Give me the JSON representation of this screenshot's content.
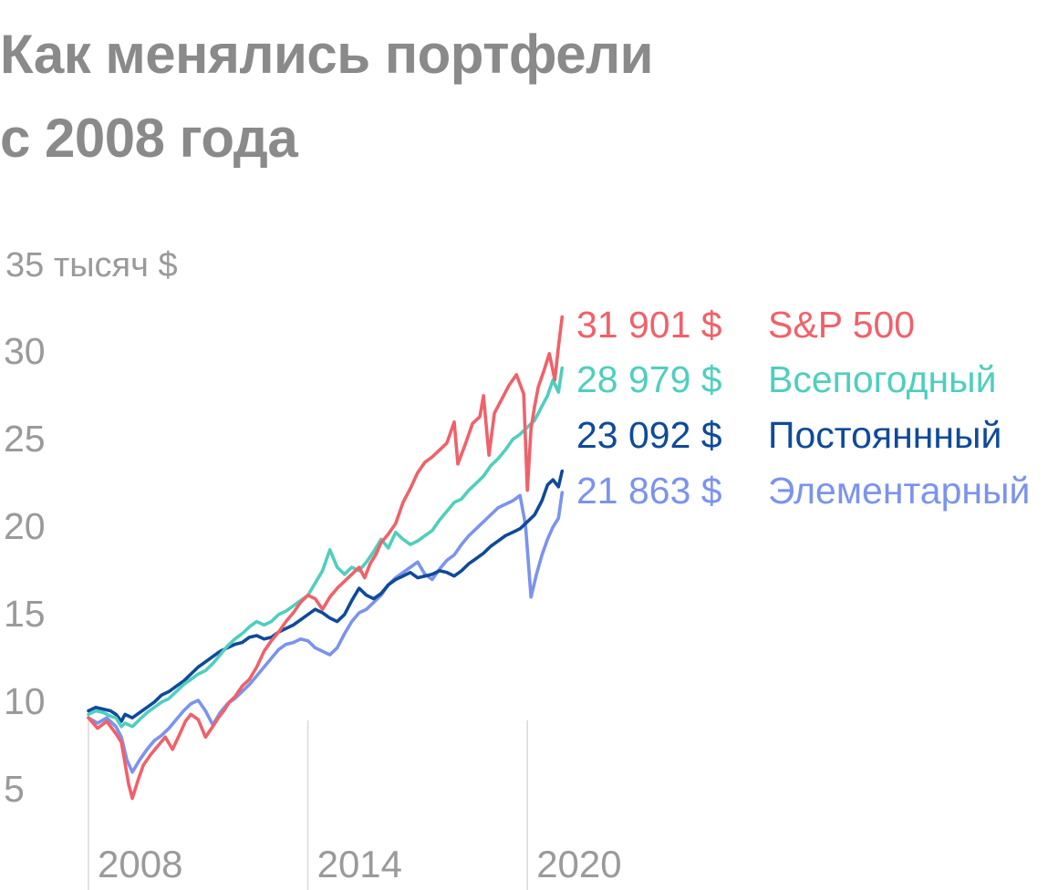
{
  "title": {
    "line1": "Как менялись портфели",
    "line2": "с 2008 года"
  },
  "chart_data": {
    "type": "line",
    "y_unit_label": "35 тысяч $",
    "y_ticks": [
      5,
      10,
      15,
      20,
      25,
      30
    ],
    "ylim": [
      0,
      35
    ],
    "x_ticks": [
      "2008",
      "2014",
      "2020"
    ],
    "xlim": [
      2008.0,
      2021.0
    ],
    "grid": "vertical lines at 2008, 2014 and 2020",
    "colors": {
      "sp500": "#f0616a",
      "all_weather": "#4fcfbd",
      "permanent": "#0e4a9b",
      "elementary": "#7b93ee",
      "grid": "#d9d9d9",
      "axis_text": "#9a9a9a"
    },
    "series": [
      {
        "name": "S&P 500",
        "key": "sp500",
        "final_label": "31 901 $",
        "x": [
          2008.0,
          2008.25,
          2008.5,
          2008.75,
          2008.9,
          2009.0,
          2009.1,
          2009.2,
          2009.35,
          2009.5,
          2009.7,
          2009.9,
          2010.1,
          2010.3,
          2010.5,
          2010.65,
          2010.8,
          2011.0,
          2011.2,
          2011.4,
          2011.55,
          2011.7,
          2011.85,
          2012.0,
          2012.2,
          2012.4,
          2012.6,
          2012.8,
          2013.0,
          2013.2,
          2013.4,
          2013.6,
          2013.8,
          2014.0,
          2014.2,
          2014.4,
          2014.6,
          2014.8,
          2015.0,
          2015.2,
          2015.4,
          2015.55,
          2015.7,
          2015.85,
          2016.0,
          2016.2,
          2016.4,
          2016.6,
          2016.8,
          2017.0,
          2017.2,
          2017.4,
          2017.6,
          2017.8,
          2018.0,
          2018.1,
          2018.3,
          2018.5,
          2018.7,
          2018.8,
          2018.95,
          2019.1,
          2019.3,
          2019.5,
          2019.7,
          2019.9,
          2020.0,
          2020.1,
          2020.2,
          2020.3,
          2020.45,
          2020.6,
          2020.75,
          2020.85,
          2020.95
        ],
        "values": [
          9.0,
          8.4,
          8.8,
          8.1,
          7.6,
          6.4,
          5.2,
          4.4,
          5.4,
          6.3,
          6.9,
          7.4,
          7.9,
          7.2,
          8.1,
          8.8,
          9.2,
          8.9,
          7.9,
          8.5,
          9.0,
          9.4,
          9.9,
          10.2,
          10.8,
          11.2,
          11.9,
          12.8,
          13.4,
          13.9,
          14.5,
          15.0,
          15.6,
          16.0,
          15.8,
          15.2,
          15.9,
          16.4,
          16.8,
          17.2,
          17.6,
          17.0,
          17.8,
          18.3,
          19.0,
          19.5,
          20.1,
          21.3,
          22.1,
          23.0,
          23.6,
          23.9,
          24.3,
          24.7,
          25.9,
          23.5,
          24.6,
          25.8,
          26.2,
          27.4,
          24.0,
          26.4,
          27.2,
          28.0,
          28.6,
          27.5,
          22.0,
          25.5,
          26.8,
          27.9,
          28.8,
          29.8,
          28.3,
          30.2,
          31.901
        ]
      },
      {
        "name": "Всепогодный",
        "key": "all_weather",
        "final_label": "28 979 $",
        "x": [
          2008.0,
          2008.2,
          2008.4,
          2008.6,
          2008.75,
          2008.9,
          2009.0,
          2009.2,
          2009.4,
          2009.6,
          2009.8,
          2010.0,
          2010.2,
          2010.4,
          2010.6,
          2010.8,
          2011.0,
          2011.2,
          2011.4,
          2011.6,
          2011.8,
          2012.0,
          2012.2,
          2012.4,
          2012.6,
          2012.8,
          2013.0,
          2013.2,
          2013.4,
          2013.6,
          2013.8,
          2014.0,
          2014.2,
          2014.4,
          2014.6,
          2014.8,
          2015.0,
          2015.2,
          2015.4,
          2015.6,
          2015.8,
          2016.0,
          2016.2,
          2016.4,
          2016.6,
          2016.8,
          2017.0,
          2017.2,
          2017.4,
          2017.6,
          2017.8,
          2018.0,
          2018.2,
          2018.4,
          2018.6,
          2018.8,
          2019.0,
          2019.2,
          2019.4,
          2019.6,
          2019.8,
          2020.0,
          2020.2,
          2020.4,
          2020.55,
          2020.7,
          2020.85,
          2020.95
        ],
        "values": [
          9.2,
          9.4,
          9.3,
          9.1,
          9.0,
          8.5,
          8.7,
          8.5,
          8.9,
          9.3,
          9.6,
          9.9,
          10.1,
          10.5,
          10.9,
          11.2,
          11.5,
          11.7,
          12.1,
          12.6,
          13.1,
          13.5,
          13.8,
          14.2,
          14.5,
          14.3,
          14.5,
          14.9,
          15.1,
          15.4,
          15.7,
          16.0,
          16.7,
          17.4,
          18.6,
          17.6,
          17.2,
          17.6,
          17.4,
          17.9,
          18.5,
          19.2,
          18.7,
          19.6,
          19.2,
          18.9,
          19.1,
          19.4,
          19.7,
          20.3,
          20.8,
          21.3,
          21.5,
          22.0,
          22.4,
          22.8,
          23.4,
          23.8,
          24.3,
          24.9,
          25.2,
          25.6,
          26.0,
          26.8,
          27.4,
          28.3,
          27.6,
          28.979
        ]
      },
      {
        "name": "Постояннный",
        "key": "permanent",
        "final_label": "23 092 $",
        "x": [
          2008.0,
          2008.2,
          2008.4,
          2008.6,
          2008.75,
          2008.9,
          2009.0,
          2009.2,
          2009.4,
          2009.6,
          2009.8,
          2010.0,
          2010.2,
          2010.4,
          2010.6,
          2010.8,
          2011.0,
          2011.2,
          2011.4,
          2011.6,
          2011.8,
          2012.0,
          2012.2,
          2012.4,
          2012.6,
          2012.8,
          2013.0,
          2013.2,
          2013.4,
          2013.6,
          2013.8,
          2014.0,
          2014.2,
          2014.4,
          2014.6,
          2014.8,
          2015.0,
          2015.2,
          2015.4,
          2015.6,
          2015.8,
          2016.0,
          2016.2,
          2016.4,
          2016.6,
          2016.8,
          2017.0,
          2017.2,
          2017.4,
          2017.6,
          2017.8,
          2018.0,
          2018.2,
          2018.4,
          2018.6,
          2018.8,
          2019.0,
          2019.2,
          2019.4,
          2019.6,
          2019.8,
          2020.0,
          2020.2,
          2020.4,
          2020.55,
          2020.7,
          2020.85,
          2020.95
        ],
        "values": [
          9.4,
          9.6,
          9.5,
          9.4,
          9.2,
          8.8,
          9.2,
          9.0,
          9.3,
          9.6,
          9.9,
          10.3,
          10.5,
          10.8,
          11.1,
          11.5,
          11.9,
          12.2,
          12.5,
          12.8,
          13.0,
          13.2,
          13.3,
          13.6,
          13.7,
          13.5,
          13.6,
          13.9,
          14.1,
          14.3,
          14.6,
          14.9,
          15.2,
          15.0,
          14.7,
          14.5,
          14.9,
          15.7,
          16.4,
          16.0,
          15.8,
          16.1,
          16.6,
          16.9,
          17.1,
          17.3,
          17.0,
          17.1,
          17.2,
          17.4,
          17.3,
          17.1,
          17.4,
          17.8,
          18.1,
          18.4,
          18.8,
          19.1,
          19.4,
          19.6,
          19.8,
          20.2,
          20.6,
          21.4,
          22.3,
          22.6,
          22.2,
          23.092
        ]
      },
      {
        "name": "Элементарный",
        "key": "elementary",
        "final_label": "21 863 $",
        "x": [
          2008.0,
          2008.25,
          2008.5,
          2008.75,
          2008.9,
          2009.05,
          2009.2,
          2009.4,
          2009.6,
          2009.8,
          2010.0,
          2010.2,
          2010.4,
          2010.6,
          2010.8,
          2011.0,
          2011.2,
          2011.4,
          2011.6,
          2011.8,
          2012.0,
          2012.2,
          2012.4,
          2012.6,
          2012.8,
          2013.0,
          2013.2,
          2013.4,
          2013.6,
          2013.8,
          2014.0,
          2014.2,
          2014.4,
          2014.6,
          2014.8,
          2015.0,
          2015.2,
          2015.4,
          2015.6,
          2015.8,
          2016.0,
          2016.2,
          2016.4,
          2016.6,
          2016.8,
          2017.0,
          2017.2,
          2017.4,
          2017.6,
          2017.8,
          2018.0,
          2018.2,
          2018.4,
          2018.6,
          2018.8,
          2019.0,
          2019.2,
          2019.4,
          2019.6,
          2019.8,
          2019.95,
          2020.1,
          2020.25,
          2020.4,
          2020.55,
          2020.7,
          2020.85,
          2020.95
        ],
        "values": [
          9.0,
          8.7,
          9.0,
          8.5,
          7.9,
          6.6,
          5.9,
          6.6,
          7.2,
          7.7,
          8.0,
          8.4,
          8.9,
          9.4,
          9.8,
          10.0,
          9.4,
          8.6,
          9.3,
          9.8,
          10.1,
          10.5,
          10.9,
          11.4,
          11.9,
          12.4,
          12.9,
          13.2,
          13.3,
          13.5,
          13.4,
          13.0,
          12.8,
          12.6,
          13.0,
          13.8,
          14.5,
          15.0,
          15.2,
          15.6,
          16.0,
          16.6,
          17.0,
          17.3,
          17.6,
          17.9,
          17.2,
          16.9,
          17.5,
          18.0,
          18.3,
          18.9,
          19.4,
          19.8,
          20.2,
          20.6,
          21.0,
          21.2,
          21.4,
          21.7,
          20.0,
          15.9,
          17.2,
          18.3,
          19.2,
          19.9,
          20.4,
          21.863
        ]
      }
    ]
  }
}
